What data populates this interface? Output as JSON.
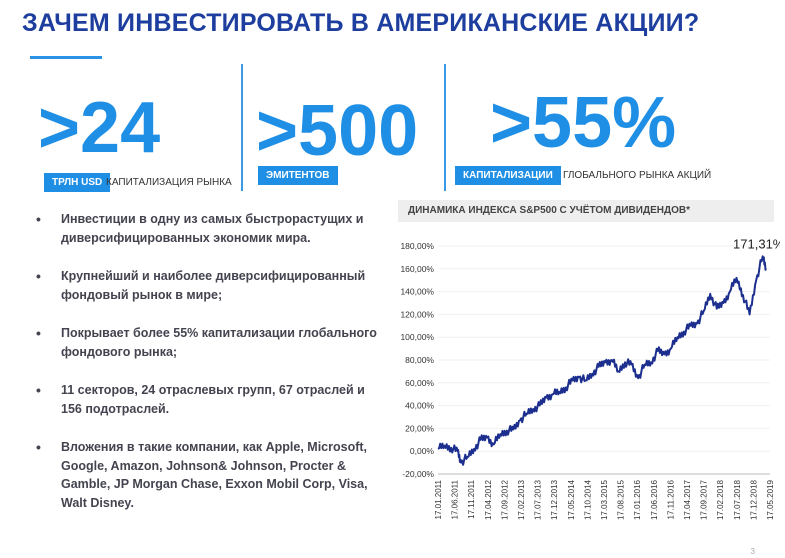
{
  "title": "ЗАЧЕМ ИНВЕСТИРОВАТЬ В АМЕРИКАНСКИЕ АКЦИИ?",
  "stats": [
    {
      "value": ">24",
      "badge": "ТРЛН USD",
      "caption": "КАПИТАЛИЗАЦИЯ РЫНКА"
    },
    {
      "value": ">500",
      "badge": "ЭМИТЕНТОВ",
      "caption": ""
    },
    {
      "value": ">55%",
      "badge": "КАПИТАЛИЗАЦИИ",
      "caption": "ГЛОБАЛЬНОГО РЫНКА АКЦИЙ"
    }
  ],
  "bullets": [
    "Инвестиции в одну из самых быстрорастущих и диверсифицированных экономик мира.",
    "Крупнейший и наиболее диверсифицированный фондовый рынок в мире;",
    "Покрывает более 55% капитализации глобального фондового рынка;",
    "11 секторов, 24 отраслевых групп, 67 отраслей  и 156 подотраслей.",
    "Вложения в такие компании, как Apple, Microsoft, Google, Amazon, Johnson& Johnson, Procter & Gamble, JP Morgan Chase, Exxon Mobil Corp, Visa, Walt Disney."
  ],
  "page_number": "3",
  "chart_data": {
    "type": "line",
    "title": "ДИНАМИКА ИНДЕКСА S&P500 С УЧЁТОМ ДИВИДЕНДОВ*",
    "annotation": "171,31%",
    "ylim": [
      -20,
      180
    ],
    "yticks": [
      "-20,00%",
      "0,00%",
      "20,00%",
      "40,00%",
      "60,00%",
      "80,00%",
      "100,00%",
      "120,00%",
      "140,00%",
      "160,00%",
      "180,00%"
    ],
    "xticks": [
      "17.01.2011",
      "17.06.2011",
      "17.11.2011",
      "17.04.2012",
      "17.09.2012",
      "17.02.2013",
      "17.07.2013",
      "17.12.2013",
      "17.05.2014",
      "17.10.2014",
      "17.03.2015",
      "17.08.2015",
      "17.01.2016",
      "17.06.2016",
      "17.11.2016",
      "17.04.2017",
      "17.09.2017",
      "17.02.2018",
      "17.07.2018",
      "17.12.2018",
      "17.05.2019"
    ],
    "line_color": "#1c2f8f",
    "series": [
      {
        "x": [
          "2011-01",
          "2011-03",
          "2011-05",
          "2011-07",
          "2011-08",
          "2011-10",
          "2011-12",
          "2012-02",
          "2012-04",
          "2012-06",
          "2012-08",
          "2012-10",
          "2012-12",
          "2013-02",
          "2013-04",
          "2013-06",
          "2013-08",
          "2013-10",
          "2013-12",
          "2014-02",
          "2014-04",
          "2014-06",
          "2014-08",
          "2014-10",
          "2014-12",
          "2015-02",
          "2015-04",
          "2015-06",
          "2015-08",
          "2015-10",
          "2015-12",
          "2016-02",
          "2016-04",
          "2016-06",
          "2016-08",
          "2016-10",
          "2016-12",
          "2017-02",
          "2017-04",
          "2017-06",
          "2017-08",
          "2017-10",
          "2017-12",
          "2018-02",
          "2018-04",
          "2018-06",
          "2018-08",
          "2018-10",
          "2018-12",
          "2019-02",
          "2019-04",
          "2019-05"
        ],
        "y": [
          2,
          5,
          3,
          0,
          -10,
          -5,
          2,
          10,
          12,
          6,
          15,
          18,
          19,
          27,
          33,
          37,
          40,
          47,
          50,
          52,
          56,
          62,
          65,
          62,
          68,
          74,
          78,
          80,
          70,
          78,
          76,
          64,
          76,
          78,
          88,
          85,
          90,
          100,
          105,
          110,
          112,
          123,
          138,
          125,
          130,
          140,
          152,
          137,
          120,
          150,
          171,
          160
        ]
      }
    ]
  }
}
